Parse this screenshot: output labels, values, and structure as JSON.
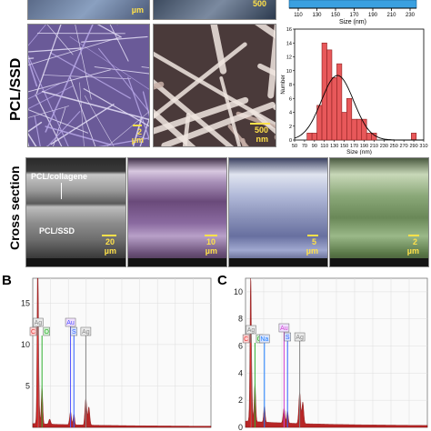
{
  "row_labels": {
    "pcl_ssd": "PCL/SSD",
    "cross_section": "Cross section"
  },
  "panel_letters": {
    "b": "B",
    "c": "C"
  },
  "sem_top_row": {
    "left_scale": "µm",
    "right_scale": "500"
  },
  "sem_middle": {
    "left_scale_value": "2",
    "left_scale_unit": "µm",
    "right_scale_value": "500",
    "right_scale_unit": "nm"
  },
  "cross_section": {
    "top_layer_label": "PCL/collagene",
    "bottom_layer_label": "PCL/SSD",
    "scales": [
      {
        "value": "20",
        "unit": "µm"
      },
      {
        "value": "10",
        "unit": "µm"
      },
      {
        "value": "5",
        "unit": "µm"
      },
      {
        "value": "2",
        "unit": "µm"
      }
    ]
  },
  "colors": {
    "bar_fill": "#e8585a",
    "bar_stroke": "#8a2020",
    "top_bar_fill": "#3aa0e0",
    "eds_spectrum": "#b01010",
    "peak_C": "#e03030",
    "peak_O": "#30b030",
    "peak_Ag": "#888888",
    "peak_S": "#3060ff",
    "peak_Au": "#5050ff",
    "peak_Na": "#2080ff",
    "peak_Au_c": "#d040d0"
  },
  "chart_data": [
    {
      "type": "bar",
      "xlabel": "Size (nm)",
      "x_ticks": [
        "110",
        "130",
        "150",
        "170",
        "190",
        "210",
        "230"
      ],
      "note": "top histogram (cropped); only bottom axis visible"
    },
    {
      "type": "bar",
      "title": "",
      "xlabel": "Size (nm)",
      "ylabel": "Number",
      "categories": [
        "50",
        "70",
        "90",
        "110",
        "130",
        "150",
        "170",
        "190",
        "210",
        "230",
        "250",
        "270",
        "290"
      ],
      "x": [
        60,
        70,
        80,
        90,
        100,
        110,
        120,
        130,
        140,
        150,
        160,
        170,
        180,
        190,
        200,
        210,
        220,
        230,
        240,
        250,
        260,
        270,
        280,
        290,
        300
      ],
      "values": [
        0,
        0,
        1,
        1,
        5,
        14,
        13,
        9,
        11,
        4,
        6,
        3,
        3,
        3,
        1,
        1,
        0,
        0,
        0,
        0,
        0,
        0,
        0,
        1,
        0
      ],
      "ylim": [
        0,
        16
      ],
      "y_ticks": [
        "0",
        "2",
        "4",
        "6",
        "8",
        "10",
        "12",
        "14",
        "16"
      ],
      "xlim": [
        50,
        310
      ],
      "fit": "normal",
      "x_tick_labels": [
        "50",
        "70",
        "90",
        "110",
        "130",
        "150",
        "170",
        "190",
        "210",
        "230",
        "250",
        "270",
        "290",
        "310"
      ]
    },
    {
      "type": "line",
      "panel": "B",
      "y_ticks": [
        "5",
        "10",
        "15"
      ],
      "ylim": [
        0,
        18
      ],
      "peaks": [
        {
          "label": "Ag",
          "x": 0.3
        },
        {
          "label": "C",
          "x": 0.28
        },
        {
          "label": "O",
          "x": 0.52
        },
        {
          "label": "Au",
          "x": 2.12
        },
        {
          "label": "S",
          "x": 2.31
        },
        {
          "label": "Ag",
          "x": 2.98
        }
      ]
    },
    {
      "type": "line",
      "panel": "C",
      "y_ticks": [
        "0",
        "2",
        "4",
        "6",
        "8",
        "10"
      ],
      "ylim": [
        0,
        11
      ],
      "peaks": [
        {
          "label": "Ag",
          "x": 0.3
        },
        {
          "label": "C",
          "x": 0.28
        },
        {
          "label": "O",
          "x": 0.52
        },
        {
          "label": "Na",
          "x": 1.04
        },
        {
          "label": "Au",
          "x": 2.12
        },
        {
          "label": "S",
          "x": 2.31
        },
        {
          "label": "Ag",
          "x": 2.98
        }
      ]
    }
  ]
}
